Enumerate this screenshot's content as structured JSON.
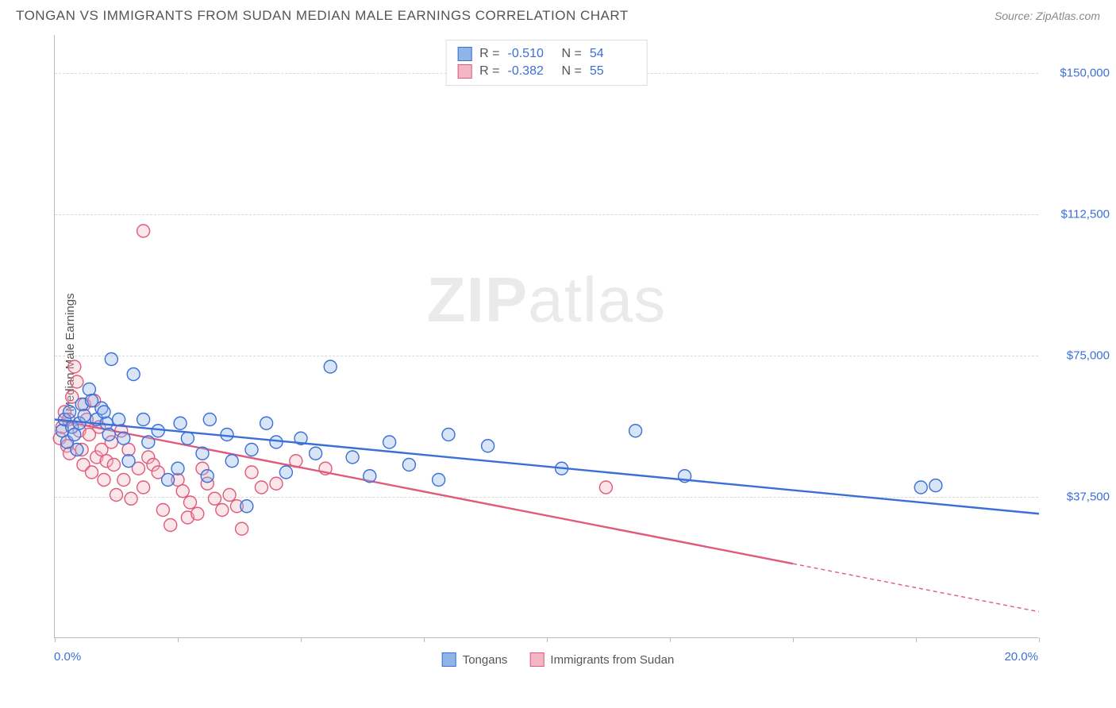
{
  "header": {
    "title": "TONGAN VS IMMIGRANTS FROM SUDAN MEDIAN MALE EARNINGS CORRELATION CHART",
    "source": "Source: ZipAtlas.com"
  },
  "axes": {
    "y_label": "Median Male Earnings",
    "x_min_label": "0.0%",
    "x_max_label": "20.0%",
    "xlim": [
      0,
      20
    ],
    "ylim": [
      0,
      160000
    ],
    "y_ticks": [
      37500,
      75000,
      112500,
      150000
    ],
    "y_tick_labels": [
      "$37,500",
      "$75,000",
      "$112,500",
      "$150,000"
    ],
    "x_tick_positions": [
      0,
      2.5,
      5,
      7.5,
      10,
      12.5,
      15,
      17.5,
      20
    ],
    "grid_color": "#d8d8d8",
    "axis_color": "#bbbbbb",
    "tick_label_color": "#3b6fd8",
    "axis_label_color": "#555555",
    "axis_label_fontsize": 15
  },
  "watermark": {
    "text_bold": "ZIP",
    "text_light": "atlas",
    "opacity": 0.08,
    "fontsize": 80
  },
  "series": {
    "a": {
      "label": "Tongans",
      "fill": "#8fb4e8",
      "stroke": "#3b6fd8",
      "r_value": "-0.510",
      "n_value": "54",
      "marker_radius": 8,
      "trend": {
        "x0": 0,
        "y0": 58000,
        "x1": 20,
        "y1": 33000,
        "dash_from_x": null
      },
      "points": [
        [
          0.15,
          55000
        ],
        [
          0.2,
          58000
        ],
        [
          0.25,
          52000
        ],
        [
          0.3,
          60000
        ],
        [
          0.35,
          56000
        ],
        [
          0.4,
          54000
        ],
        [
          0.45,
          50000
        ],
        [
          0.5,
          57000
        ],
        [
          0.55,
          62000
        ],
        [
          0.6,
          59000
        ],
        [
          0.7,
          66000
        ],
        [
          0.75,
          63000
        ],
        [
          0.85,
          58000
        ],
        [
          0.95,
          61000
        ],
        [
          1.05,
          57000
        ],
        [
          1.1,
          54000
        ],
        [
          1.15,
          74000
        ],
        [
          1.3,
          58000
        ],
        [
          1.4,
          53000
        ],
        [
          1.5,
          47000
        ],
        [
          1.6,
          70000
        ],
        [
          1.8,
          58000
        ],
        [
          1.9,
          52000
        ],
        [
          2.1,
          55000
        ],
        [
          2.3,
          42000
        ],
        [
          2.5,
          45000
        ],
        [
          2.55,
          57000
        ],
        [
          2.7,
          53000
        ],
        [
          3.0,
          49000
        ],
        [
          3.1,
          43000
        ],
        [
          3.15,
          58000
        ],
        [
          3.5,
          54000
        ],
        [
          3.6,
          47000
        ],
        [
          3.9,
          35000
        ],
        [
          4.0,
          50000
        ],
        [
          4.3,
          57000
        ],
        [
          4.5,
          52000
        ],
        [
          4.7,
          44000
        ],
        [
          5.0,
          53000
        ],
        [
          5.3,
          49000
        ],
        [
          5.6,
          72000
        ],
        [
          6.05,
          48000
        ],
        [
          6.4,
          43000
        ],
        [
          6.8,
          52000
        ],
        [
          7.2,
          46000
        ],
        [
          7.8,
          42000
        ],
        [
          8.0,
          54000
        ],
        [
          8.8,
          51000
        ],
        [
          10.3,
          45000
        ],
        [
          11.8,
          55000
        ],
        [
          12.8,
          43000
        ],
        [
          17.6,
          40000
        ],
        [
          17.9,
          40500
        ],
        [
          1.0,
          60000
        ]
      ]
    },
    "b": {
      "label": "Immigrants from Sudan",
      "fill": "#f3b6c4",
      "stroke": "#e05a7b",
      "r_value": "-0.382",
      "n_value": "55",
      "marker_radius": 8,
      "trend": {
        "x0": 0,
        "y0": 58000,
        "x1": 20,
        "y1": 7000,
        "dash_from_x": 15
      },
      "points": [
        [
          0.1,
          53000
        ],
        [
          0.15,
          56000
        ],
        [
          0.2,
          60000
        ],
        [
          0.25,
          51000
        ],
        [
          0.28,
          58000
        ],
        [
          0.3,
          49000
        ],
        [
          0.35,
          64000
        ],
        [
          0.4,
          72000
        ],
        [
          0.45,
          68000
        ],
        [
          0.5,
          55000
        ],
        [
          0.55,
          50000
        ],
        [
          0.58,
          46000
        ],
        [
          0.6,
          62000
        ],
        [
          0.65,
          58000
        ],
        [
          0.7,
          54000
        ],
        [
          0.75,
          44000
        ],
        [
          0.8,
          63000
        ],
        [
          0.85,
          48000
        ],
        [
          0.9,
          56000
        ],
        [
          0.95,
          50000
        ],
        [
          1.0,
          42000
        ],
        [
          1.05,
          47000
        ],
        [
          1.15,
          52000
        ],
        [
          1.2,
          46000
        ],
        [
          1.25,
          38000
        ],
        [
          1.35,
          55000
        ],
        [
          1.4,
          42000
        ],
        [
          1.5,
          50000
        ],
        [
          1.55,
          37000
        ],
        [
          1.7,
          45000
        ],
        [
          1.8,
          40000
        ],
        [
          1.8,
          108000
        ],
        [
          1.9,
          48000
        ],
        [
          2.0,
          46000
        ],
        [
          2.1,
          44000
        ],
        [
          2.2,
          34000
        ],
        [
          2.35,
          30000
        ],
        [
          2.5,
          42000
        ],
        [
          2.6,
          39000
        ],
        [
          2.7,
          32000
        ],
        [
          2.75,
          36000
        ],
        [
          2.9,
          33000
        ],
        [
          3.0,
          45000
        ],
        [
          3.1,
          41000
        ],
        [
          3.25,
          37000
        ],
        [
          3.4,
          34000
        ],
        [
          3.55,
          38000
        ],
        [
          3.7,
          35000
        ],
        [
          3.8,
          29000
        ],
        [
          4.0,
          44000
        ],
        [
          4.2,
          40000
        ],
        [
          4.5,
          41000
        ],
        [
          4.9,
          47000
        ],
        [
          5.5,
          45000
        ],
        [
          11.2,
          40000
        ]
      ]
    }
  },
  "stats_box": {
    "r_label": "R =",
    "n_label": "N ="
  },
  "legend": {
    "position": "bottom-center"
  },
  "colors": {
    "background": "#ffffff",
    "text": "#555555",
    "link_blue": "#3b6fd8"
  }
}
